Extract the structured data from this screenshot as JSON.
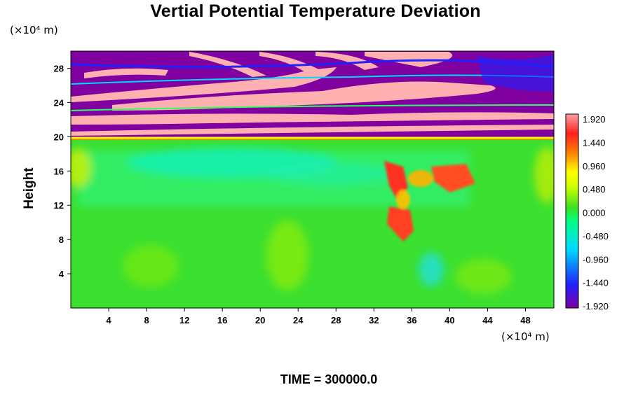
{
  "chart_data": {
    "type": "heatmap",
    "title": "Vertial Potential Temperature Deviation",
    "xlabel": "",
    "ylabel": "Height",
    "x_unit": "(×10⁴ m)",
    "y_unit": "(×10⁴ m)",
    "xlim": [
      0,
      51
    ],
    "ylim": [
      0,
      30
    ],
    "x_ticks": [
      "4",
      "8",
      "12",
      "16",
      "20",
      "24",
      "28",
      "32",
      "36",
      "40",
      "44",
      "48"
    ],
    "x_tick_values": [
      4,
      8,
      12,
      16,
      20,
      24,
      28,
      32,
      36,
      40,
      44,
      48
    ],
    "y_ticks": [
      "4",
      "8",
      "12",
      "16",
      "20",
      "24",
      "28"
    ],
    "y_tick_values": [
      4,
      8,
      12,
      16,
      20,
      24,
      28
    ],
    "colorbar": {
      "labels": [
        "1.920",
        "1.440",
        "0.960",
        "0.480",
        "0.000",
        "-0.480",
        "-0.960",
        "-1.440",
        "-1.920"
      ],
      "values": [
        1.92,
        1.44,
        0.96,
        0.48,
        0.0,
        -0.48,
        -0.96,
        -1.44,
        -1.92
      ],
      "range": [
        -1.92,
        1.92
      ],
      "colormap": [
        "#8000a0",
        "#2020ff",
        "#00d8ff",
        "#00ff80",
        "#40e020",
        "#ffff00",
        "#ff8000",
        "#ff2020",
        "#ffa0a0"
      ]
    },
    "features": [
      {
        "region": "stratosphere alternating bands",
        "y_range": [
          20,
          30
        ],
        "values": "alternating -1.92 and 1.92"
      },
      {
        "region": "warm anomaly patch",
        "x_range": [
          33,
          43
        ],
        "y_range": [
          8,
          17
        ],
        "value": 1.5
      }
    ],
    "annotation": "TIME = 300000.0"
  }
}
